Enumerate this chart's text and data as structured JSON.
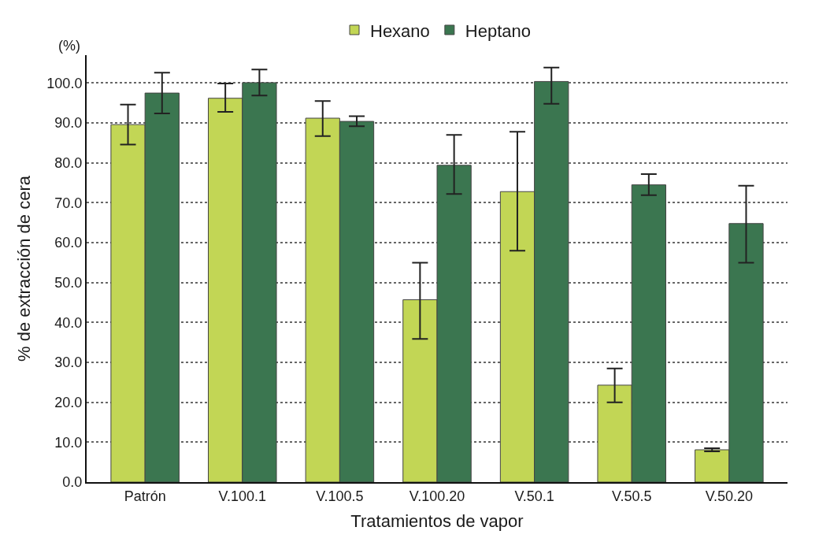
{
  "chart_data": {
    "type": "bar",
    "xlabel": "Tratamientos de vapor",
    "ylabel": "% de extracción de cera",
    "annotations": [
      "(%)"
    ],
    "categories": [
      "Patrón",
      "V.100.1",
      "V.100.5",
      "V.100.20",
      "V.50.1",
      "V.50.5",
      "V.50.20"
    ],
    "series": [
      {
        "name": "Hexano",
        "color": "#c2d655",
        "values": [
          89.6,
          96.2,
          91.2,
          45.7,
          72.8,
          24.3,
          8.1
        ],
        "errors": [
          [
            84.6,
            94.6
          ],
          [
            92.8,
            99.9
          ],
          [
            86.7,
            95.5
          ],
          [
            35.9,
            55.0
          ],
          [
            58.0,
            87.8
          ],
          [
            20.0,
            28.5
          ],
          [
            7.7,
            8.5
          ]
        ]
      },
      {
        "name": "Heptano",
        "color": "#3b7650",
        "values": [
          97.5,
          100.1,
          90.4,
          79.4,
          100.4,
          74.5,
          64.8
        ],
        "errors": [
          [
            92.4,
            102.6
          ],
          [
            96.9,
            103.4
          ],
          [
            89.2,
            91.7
          ],
          [
            72.2,
            87.0
          ],
          [
            94.8,
            103.9
          ],
          [
            71.9,
            77.2
          ],
          [
            55.0,
            74.3
          ]
        ]
      }
    ],
    "ylim": [
      0,
      107
    ],
    "yticks": [
      {
        "value": 0,
        "label": "0.0"
      },
      {
        "value": 10,
        "label": "10.0"
      },
      {
        "value": 20,
        "label": "20.0"
      },
      {
        "value": 30,
        "label": "30.0"
      },
      {
        "value": 40,
        "label": "40.0"
      },
      {
        "value": 50,
        "label": "50.0"
      },
      {
        "value": 60,
        "label": "60.0"
      },
      {
        "value": 70,
        "label": "70.0"
      },
      {
        "value": 80,
        "label": "80.0"
      },
      {
        "value": 90,
        "label": "90.0"
      },
      {
        "value": 100,
        "label": "100.0"
      }
    ],
    "grid": "y",
    "legend": "top"
  }
}
